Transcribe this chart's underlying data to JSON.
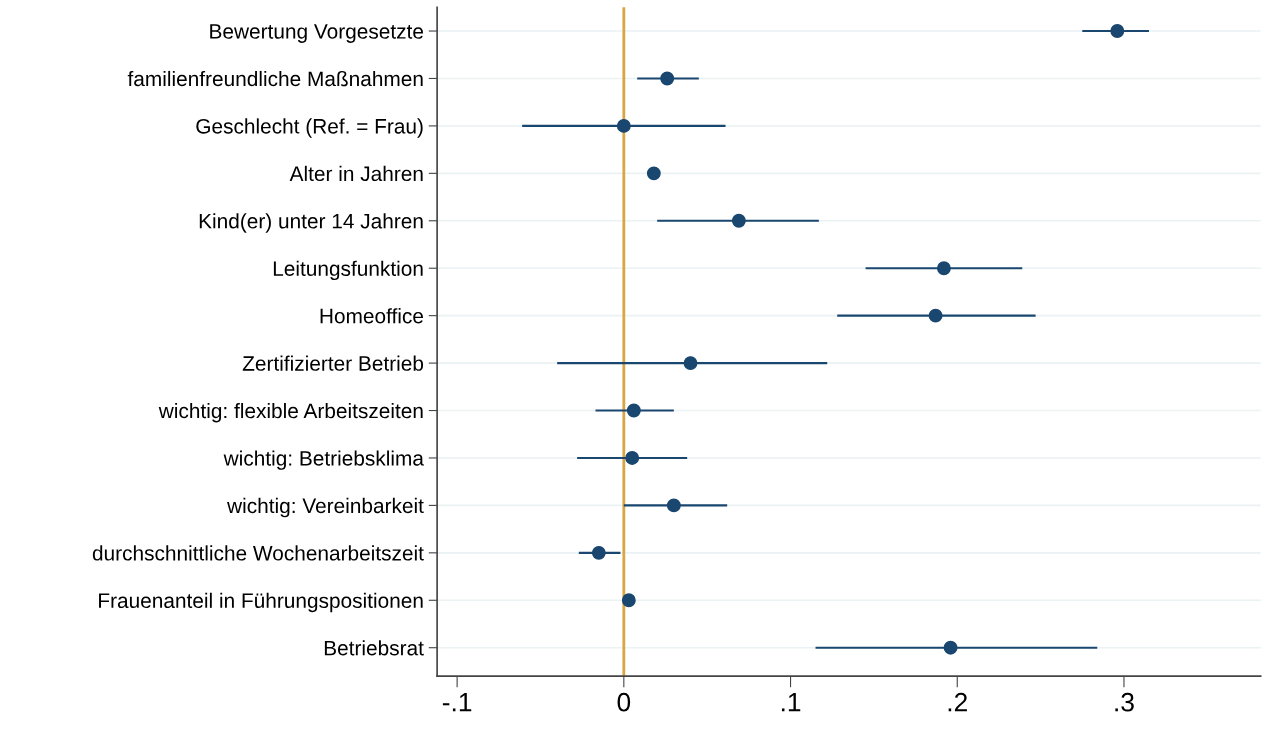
{
  "chart_data": {
    "type": "scatter",
    "orientation": "horizontal",
    "categories": [
      "Bewertung Vorgesetzte",
      "familienfreundliche Maßnahmen",
      "Geschlecht (Ref. = Frau)",
      "Alter in Jahren",
      "Kind(er) unter 14 Jahren",
      "Leitungsfunktion",
      "Homeoffice",
      "Zertifizierter Betrieb",
      "wichtig: flexible Arbeitszeiten",
      "wichtig: Betriebsklima",
      "wichtig: Vereinbarkeit",
      "durchschnittliche Wochenarbeitszeit",
      "Frauenanteil in Führungspositionen",
      "Betriebsrat"
    ],
    "values": [
      0.296,
      0.026,
      0.0,
      0.018,
      0.069,
      0.192,
      0.187,
      0.04,
      0.006,
      0.005,
      0.03,
      -0.015,
      0.003,
      0.196
    ],
    "errors": [
      [
        0.275,
        0.315
      ],
      [
        0.008,
        0.045
      ],
      [
        -0.061,
        0.061
      ],
      [
        0.016,
        0.021
      ],
      [
        0.02,
        0.117
      ],
      [
        0.145,
        0.239
      ],
      [
        0.128,
        0.247
      ],
      [
        -0.04,
        0.122
      ],
      [
        -0.017,
        0.03
      ],
      [
        -0.028,
        0.038
      ],
      [
        0.0,
        0.062
      ],
      [
        -0.027,
        -0.002
      ],
      [
        0.002,
        0.004
      ],
      [
        0.115,
        0.284
      ]
    ],
    "color": "#1a476f",
    "marker": "circle",
    "xlim": [
      -0.112,
      0.382
    ],
    "xticks": [
      {
        "value": -0.1,
        "label": "-.1"
      },
      {
        "value": 0,
        "label": "0"
      },
      {
        "value": 0.1,
        "label": ".1"
      },
      {
        "value": 0.2,
        "label": ".2"
      },
      {
        "value": 0.3,
        "label": ".3"
      }
    ],
    "ref_lines": [
      {
        "axis": "x",
        "value": 0,
        "color": "#d9a441"
      }
    ],
    "grid": "y"
  }
}
